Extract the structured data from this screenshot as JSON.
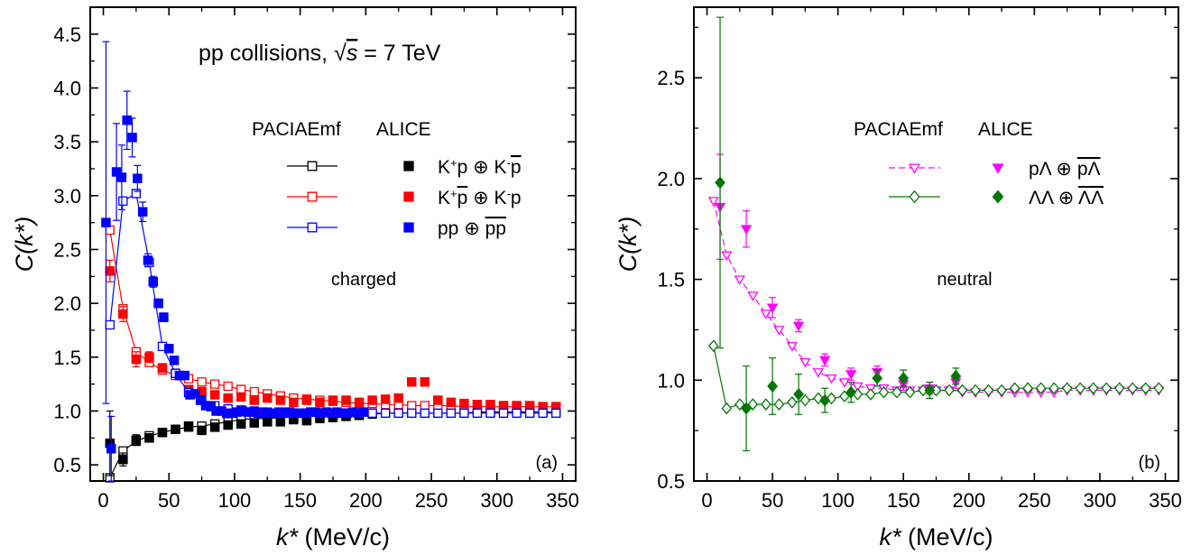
{
  "chart_data": [
    {
      "type": "scatter",
      "panel_label": "(a)",
      "title": "pp collisions, √s = 7 TeV",
      "title_parts": {
        "pre": "pp collisions, ",
        "root": "√",
        "s": "s",
        "post": " = 7 TeV"
      },
      "annotation": "charged",
      "xlabel": {
        "var": "k*",
        "units": " (MeV/c)"
      },
      "ylabel": {
        "var": "C(k*)"
      },
      "xlim": [
        -10,
        360
      ],
      "ylim": [
        0.35,
        4.75
      ],
      "xticks": [
        0,
        50,
        100,
        150,
        200,
        250,
        300,
        350
      ],
      "yticks": [
        0.5,
        1.0,
        1.5,
        2.0,
        2.5,
        3.0,
        3.5,
        4.0,
        4.5
      ],
      "ytick_labels": [
        "0.5",
        "1.0",
        "1.5",
        "2.0",
        "2.5",
        "3.0",
        "3.5",
        "4.0",
        "4.5"
      ],
      "grid": false,
      "legend_header": {
        "model": "PACIAEmf",
        "data": "ALICE"
      },
      "legend_position": "upper-right",
      "series": [
        {
          "name": "K⁺p ⊕ K⁻p̄",
          "legend_key": "kp_kbarp",
          "color": "#000000",
          "model": {
            "marker": "open-square",
            "line": "solid",
            "x": [
              5,
              15,
              25,
              35,
              45,
              55,
              65,
              75,
              85,
              95,
              105,
              115,
              125,
              135,
              145,
              155,
              165,
              175,
              185,
              195,
              205,
              215,
              225,
              235,
              245,
              255,
              265,
              275,
              285,
              295,
              305,
              315,
              325,
              335,
              345
            ],
            "y": [
              0.38,
              0.63,
              0.72,
              0.77,
              0.8,
              0.83,
              0.85,
              0.86,
              0.88,
              0.9,
              0.92,
              0.93,
              0.93,
              0.94,
              0.95,
              0.95,
              0.96,
              0.96,
              0.97,
              0.97,
              0.97,
              0.98,
              0.98,
              0.98,
              0.98,
              0.98,
              0.98,
              0.98,
              0.99,
              0.99,
              0.99,
              0.99,
              0.99,
              0.99,
              0.99
            ]
          },
          "data": {
            "marker": "filled-square",
            "x": [
              5,
              15,
              25,
              35,
              45,
              55,
              65,
              75,
              85,
              95,
              105,
              115,
              125,
              135,
              145,
              155,
              165,
              175,
              185,
              195
            ],
            "y": [
              0.7,
              0.55,
              0.73,
              0.75,
              0.8,
              0.83,
              0.86,
              0.82,
              0.85,
              0.87,
              0.88,
              0.89,
              0.9,
              0.9,
              0.92,
              0.91,
              0.93,
              0.94,
              0.95,
              0.96
            ],
            "err": [
              0.3,
              0.06,
              0.05,
              0.03,
              0.03,
              0.02,
              0.02,
              0.02,
              0.02,
              0.02,
              0.02,
              0.02,
              0.02,
              0.02,
              0.02,
              0.02,
              0.02,
              0.02,
              0.02,
              0.02
            ]
          }
        },
        {
          "name": "K⁺p̄ ⊕ K⁻p",
          "legend_key": "kpbar_kbarp",
          "color": "#ff0000",
          "model": {
            "marker": "open-square",
            "line": "solid",
            "x": [
              5,
              15,
              25,
              35,
              45,
              55,
              65,
              75,
              85,
              95,
              105,
              115,
              125,
              135,
              145,
              155,
              165,
              175,
              185,
              195,
              205,
              215,
              225,
              235,
              245,
              255,
              265,
              275,
              285,
              295,
              305,
              315,
              325,
              335,
              345
            ],
            "y": [
              2.68,
              1.95,
              1.55,
              1.45,
              1.38,
              1.33,
              1.3,
              1.27,
              1.25,
              1.23,
              1.2,
              1.18,
              1.16,
              1.14,
              1.12,
              1.11,
              1.1,
              1.09,
              1.08,
              1.07,
              1.07,
              1.06,
              1.06,
              1.05,
              1.05,
              1.05,
              1.05,
              1.04,
              1.04,
              1.04,
              1.04,
              1.04,
              1.04,
              1.04,
              1.04
            ]
          },
          "data": {
            "marker": "filled-square",
            "x": [
              5,
              15,
              25,
              35,
              45,
              55,
              65,
              75,
              85,
              95,
              105,
              115,
              125,
              135,
              145,
              155,
              165,
              175,
              185,
              195,
              205,
              215,
              225,
              235,
              245,
              255,
              265,
              275,
              285,
              295,
              305,
              315,
              325,
              335,
              345
            ],
            "y": [
              2.3,
              1.9,
              1.48,
              1.5,
              1.4,
              1.35,
              1.2,
              1.18,
              1.15,
              1.12,
              1.13,
              1.1,
              1.12,
              1.1,
              1.08,
              1.1,
              1.08,
              1.1,
              1.1,
              1.08,
              1.1,
              1.11,
              1.12,
              1.27,
              1.27,
              1.1,
              1.08,
              1.07,
              1.06,
              1.06,
              1.05,
              1.05,
              1.05,
              1.04,
              1.04
            ],
            "err": [
              0.1,
              0.07,
              0.07,
              0.05,
              0.04,
              0.03,
              0.03,
              0.02,
              0.02,
              0.02,
              0.02,
              0.02,
              0.02,
              0.02,
              0.02,
              0.02,
              0.02,
              0.02,
              0.02,
              0.02,
              0.02,
              0.02,
              0.02,
              0.02,
              0.02,
              0.02,
              0.02,
              0.02,
              0.02,
              0.02,
              0.02,
              0.02,
              0.02,
              0.02,
              0.02
            ]
          }
        },
        {
          "name": "pp ⊕ p̄p̄",
          "legend_key": "pp_pbarpbar",
          "color": "#0000ff",
          "model": {
            "marker": "open-square",
            "line": "solid",
            "x": [
              5,
              15,
              25,
              35,
              45,
              55,
              65,
              75,
              85,
              95,
              105,
              115,
              125,
              135,
              145,
              155,
              165,
              175,
              185,
              195,
              205,
              215,
              225,
              235,
              245,
              255,
              265,
              275,
              285,
              295,
              305,
              315,
              325,
              335,
              345
            ],
            "y": [
              1.8,
              2.95,
              3.02,
              2.38,
              1.6,
              1.35,
              1.17,
              1.1,
              1.05,
              1.02,
              1.01,
              1.0,
              0.99,
              0.99,
              0.98,
              0.98,
              0.98,
              0.98,
              0.98,
              0.98,
              0.98,
              0.98,
              0.98,
              0.98,
              0.98,
              0.98,
              0.98,
              0.98,
              0.98,
              0.98,
              0.98,
              0.98,
              0.98,
              0.98,
              0.98
            ]
          },
          "data": {
            "marker": "filled-square",
            "x": [
              2,
              6,
              10,
              14,
              18,
              22,
              26,
              30,
              34,
              38,
              42,
              46,
              50,
              54,
              58,
              62,
              66,
              70,
              74,
              78,
              82,
              86,
              90,
              94,
              98,
              102,
              106,
              110,
              114,
              118,
              122,
              126,
              130,
              134,
              138,
              142,
              146,
              150,
              154,
              158,
              162,
              166,
              170,
              174,
              178,
              182,
              186,
              190,
              194,
              198
            ],
            "y": [
              2.75,
              0.65,
              3.22,
              3.17,
              3.7,
              3.54,
              3.16,
              2.85,
              2.4,
              2.2,
              2.0,
              1.87,
              1.58,
              1.47,
              1.33,
              1.33,
              1.15,
              1.16,
              1.1,
              1.05,
              1.04,
              1.0,
              1.0,
              0.98,
              0.98,
              0.99,
              1.0,
              0.99,
              0.99,
              0.98,
              0.99,
              0.98,
              0.98,
              0.99,
              0.98,
              0.99,
              0.98,
              0.98,
              0.98,
              0.99,
              0.99,
              0.98,
              0.99,
              0.98,
              0.99,
              0.98,
              0.98,
              0.99,
              0.98,
              0.99
            ],
            "err": [
              1.68,
              0.3,
              0.45,
              0.3,
              0.27,
              0.18,
              0.12,
              0.09,
              0.06,
              0.05,
              0.04,
              0.04,
              0.03,
              0.03,
              0.03,
              0.03,
              0.03,
              0.03,
              0.02,
              0.02,
              0.02,
              0.02,
              0.02,
              0.02,
              0.02,
              0.02,
              0.02,
              0.02,
              0.02,
              0.02,
              0.02,
              0.02,
              0.02,
              0.02,
              0.02,
              0.02,
              0.02,
              0.02,
              0.02,
              0.02,
              0.02,
              0.02,
              0.02,
              0.02,
              0.02,
              0.02,
              0.02,
              0.02,
              0.02,
              0.02
            ]
          }
        }
      ]
    },
    {
      "type": "scatter",
      "panel_label": "(b)",
      "annotation": "neutral",
      "xlabel": {
        "var": "k*",
        "units": " (MeV/c)"
      },
      "ylabel": {
        "var": "C(k*)"
      },
      "xlim": [
        -10,
        360
      ],
      "ylim": [
        0.5,
        2.85
      ],
      "xticks": [
        0,
        50,
        100,
        150,
        200,
        250,
        300,
        350
      ],
      "yticks": [
        0.5,
        1.0,
        1.5,
        2.0,
        2.5
      ],
      "ytick_labels": [
        "0.5",
        "1.0",
        "1.5",
        "2.0",
        "2.5"
      ],
      "grid": false,
      "legend_header": {
        "model": "PACIAEmf",
        "data": "ALICE"
      },
      "legend_position": "upper-right",
      "series": [
        {
          "name": "pΛ ⊕ p̄Λ̄",
          "legend_key": "plambda",
          "color": "#ff00ff",
          "model": {
            "marker": "open-triangle-down",
            "line": "dashed",
            "x": [
              5,
              15,
              25,
              35,
              45,
              55,
              65,
              75,
              85,
              95,
              105,
              115,
              125,
              135,
              145,
              155,
              165,
              175,
              185,
              195,
              205,
              215,
              225,
              235,
              245,
              255,
              265,
              275,
              285,
              295,
              305,
              315,
              325,
              335,
              345
            ],
            "y": [
              1.89,
              1.62,
              1.5,
              1.42,
              1.33,
              1.25,
              1.17,
              1.09,
              1.04,
              1.01,
              0.99,
              0.97,
              0.96,
              0.96,
              0.95,
              0.95,
              0.95,
              0.95,
              0.95,
              0.94,
              0.94,
              0.94,
              0.94,
              0.94,
              0.94,
              0.94,
              0.94,
              0.95,
              0.95,
              0.95,
              0.95,
              0.95,
              0.95,
              0.95,
              0.95
            ]
          },
          "data": {
            "marker": "filled-triangle-down",
            "x": [
              10,
              30,
              50,
              70,
              90,
              110,
              130,
              150,
              170,
              190
            ],
            "y": [
              1.86,
              1.75,
              1.36,
              1.27,
              1.1,
              1.03,
              1.04,
              0.98,
              0.96,
              0.99
            ],
            "err": [
              0.26,
              0.09,
              0.05,
              0.03,
              0.03,
              0.03,
              0.03,
              0.03,
              0.03,
              0.03
            ]
          }
        },
        {
          "name": "ΛΛ ⊕ Λ̄Λ̄",
          "legend_key": "lambdalambda",
          "color": "#007700",
          "model": {
            "marker": "open-diamond",
            "line": "solid",
            "x": [
              5,
              15,
              25,
              35,
              45,
              55,
              65,
              75,
              85,
              95,
              105,
              115,
              125,
              135,
              145,
              155,
              165,
              175,
              185,
              195,
              205,
              215,
              225,
              235,
              245,
              255,
              265,
              275,
              285,
              295,
              305,
              315,
              325,
              335,
              345
            ],
            "y": [
              1.17,
              0.86,
              0.88,
              0.88,
              0.88,
              0.88,
              0.89,
              0.9,
              0.91,
              0.91,
              0.92,
              0.93,
              0.93,
              0.94,
              0.94,
              0.94,
              0.95,
              0.95,
              0.95,
              0.95,
              0.95,
              0.95,
              0.95,
              0.96,
              0.96,
              0.96,
              0.96,
              0.96,
              0.96,
              0.96,
              0.96,
              0.96,
              0.96,
              0.96,
              0.96
            ]
          },
          "data": {
            "marker": "filled-diamond",
            "x": [
              10,
              30,
              50,
              70,
              90,
              110,
              130,
              150,
              170,
              190
            ],
            "y": [
              1.98,
              0.86,
              0.97,
              0.93,
              0.9,
              0.94,
              1.01,
              1.01,
              0.95,
              1.02
            ],
            "err": [
              0.82,
              0.21,
              0.14,
              0.1,
              0.06,
              0.05,
              0.04,
              0.04,
              0.04,
              0.04
            ]
          }
        }
      ]
    }
  ]
}
